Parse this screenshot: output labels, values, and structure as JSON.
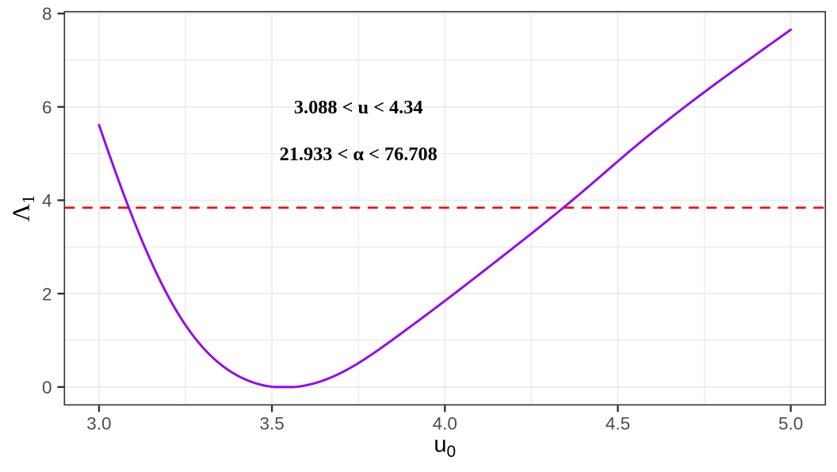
{
  "chart_data": {
    "type": "line",
    "title": "",
    "xlabel": {
      "base": "u",
      "subscript": "0"
    },
    "ylabel": {
      "base": "Λ",
      "subscript": "1"
    },
    "xlim": [
      2.9,
      5.1
    ],
    "ylim": [
      -0.38285,
      8.03985
    ],
    "x_ticks": {
      "values": [
        3.0,
        3.5,
        4.0,
        4.5,
        5.0
      ],
      "labels": [
        "3.0",
        "3.5",
        "4.0",
        "4.5",
        "5.0"
      ]
    },
    "y_ticks": {
      "values": [
        0,
        2,
        4,
        6,
        8
      ],
      "labels": [
        "0",
        "2",
        "4",
        "6",
        "8"
      ]
    },
    "x_minor_breaks": [
      3.25,
      3.75,
      4.25,
      4.75
    ],
    "y_minor_breaks": [
      1,
      3,
      5,
      7
    ],
    "grid": "major+minor",
    "legend": "none",
    "series": [
      {
        "name": "profile-likelihood-curve",
        "color": "#9405EC",
        "width": 2.9,
        "x": [
          3.0,
          3.01,
          3.02,
          3.03,
          3.04,
          3.05,
          3.06,
          3.07,
          3.08,
          3.09,
          3.1,
          3.11,
          3.12,
          3.13,
          3.14,
          3.15,
          3.16,
          3.17,
          3.18,
          3.19,
          3.2,
          3.21,
          3.22,
          3.23,
          3.24,
          3.25,
          3.26,
          3.27,
          3.28,
          3.29,
          3.3,
          3.31,
          3.32,
          3.33,
          3.34,
          3.35,
          3.36,
          3.37,
          3.38,
          3.39,
          3.4,
          3.41,
          3.42,
          3.43,
          3.44,
          3.45,
          3.46,
          3.47,
          3.48,
          3.49,
          3.5,
          3.51,
          3.52,
          3.53,
          3.54,
          3.55,
          3.56,
          3.57,
          3.58,
          3.59,
          3.6,
          3.61,
          3.62,
          3.63,
          3.64,
          3.65,
          3.66,
          3.67,
          3.68,
          3.69,
          3.7,
          3.71,
          3.72,
          3.73,
          3.74,
          3.75,
          3.76,
          3.77,
          3.78,
          3.79,
          3.8,
          3.81,
          3.82,
          3.83,
          3.84,
          3.85,
          3.86,
          3.87,
          3.88,
          3.89,
          3.9,
          3.91,
          3.92,
          3.93,
          3.94,
          3.95,
          3.96,
          3.97,
          3.98,
          3.99,
          4.0,
          4.01,
          4.02,
          4.03,
          4.04,
          4.05,
          4.06,
          4.07,
          4.08,
          4.09,
          4.1,
          4.11,
          4.12,
          4.13,
          4.14,
          4.15,
          4.16,
          4.17,
          4.18,
          4.19,
          4.2,
          4.21,
          4.22,
          4.23,
          4.24,
          4.25,
          4.26,
          4.27,
          4.28,
          4.29,
          4.3,
          4.31,
          4.32,
          4.33,
          4.34,
          4.35,
          4.36,
          4.37,
          4.38,
          4.39,
          4.4,
          4.41,
          4.42,
          4.43,
          4.44,
          4.45,
          4.46,
          4.47,
          4.48,
          4.49,
          4.5,
          4.51,
          4.52,
          4.53,
          4.54,
          4.55,
          4.56,
          4.57,
          4.58,
          4.59,
          4.6,
          4.61,
          4.62,
          4.63,
          4.64,
          4.65,
          4.66,
          4.67,
          4.68,
          4.69,
          4.7,
          4.71,
          4.72,
          4.73,
          4.74,
          4.75,
          4.76,
          4.77,
          4.78,
          4.79,
          4.8,
          4.81,
          4.82,
          4.83,
          4.84,
          4.85,
          4.86,
          4.87,
          4.88,
          4.89,
          4.9,
          4.91,
          4.92,
          4.93,
          4.94,
          4.95,
          4.96,
          4.97,
          4.98,
          4.99,
          5.0
        ],
        "y": [
          5.6127,
          5.3975,
          5.184,
          4.9727,
          4.7639,
          4.5577,
          4.3545,
          4.1546,
          3.958,
          3.7652,
          3.5763,
          3.3915,
          3.2109,
          3.0349,
          2.8636,
          2.6971,
          2.5356,
          2.3793,
          2.2284,
          2.0828,
          1.9428,
          1.8084,
          1.6796,
          1.5565,
          1.4389,
          1.327,
          1.2205,
          1.1195,
          1.0238,
          0.9334,
          0.8481,
          0.7678,
          0.6924,
          0.6216,
          0.5555,
          0.4937,
          0.4362,
          0.3828,
          0.3333,
          0.2877,
          0.2457,
          0.2072,
          0.1722,
          0.1405,
          0.1121,
          0.0867,
          0.0644,
          0.0452,
          0.0288,
          0.0152,
          0.0045,
          0.0,
          0.0,
          0.0,
          0.0,
          0.0,
          0.0,
          0.0027,
          0.0124,
          0.0244,
          0.0388,
          0.0555,
          0.0745,
          0.0957,
          0.1191,
          0.1447,
          0.1725,
          0.2025,
          0.2345,
          0.2685,
          0.3046,
          0.3425,
          0.3823,
          0.4239,
          0.4671,
          0.5119,
          0.5582,
          0.6058,
          0.6545,
          0.7044,
          0.7551,
          0.8067,
          0.859,
          0.9119,
          0.9652,
          1.019,
          1.073,
          1.1273,
          1.1819,
          1.2365,
          1.2913,
          1.3462,
          1.4012,
          1.4563,
          1.5115,
          1.5668,
          1.6223,
          1.6779,
          1.7336,
          1.7896,
          1.8457,
          1.902,
          1.9584,
          2.0151,
          2.0719,
          2.1289,
          2.186,
          2.2432,
          2.3006,
          2.358,
          2.4156,
          2.4731,
          2.5308,
          2.5885,
          2.6462,
          2.704,
          2.7618,
          2.8197,
          2.8776,
          2.9357,
          2.9938,
          3.0521,
          3.1105,
          3.169,
          3.2277,
          3.2865,
          3.3455,
          3.4048,
          3.4642,
          3.5238,
          3.5836,
          3.6437,
          3.704,
          3.7646,
          3.8255,
          3.8866,
          3.9481,
          4.0098,
          4.0718,
          4.1342,
          4.1969,
          4.2599,
          4.3232,
          4.3867,
          4.4505,
          4.5145,
          4.5786,
          4.6428,
          4.707,
          4.771,
          4.8349,
          4.8986,
          4.9619,
          5.0249,
          5.0875,
          5.1496,
          5.2113,
          5.2725,
          5.3333,
          5.3937,
          5.4536,
          5.5132,
          5.5724,
          5.6313,
          5.6899,
          5.7482,
          5.8062,
          5.8639,
          5.9214,
          5.9786,
          6.0355,
          6.0922,
          6.1485,
          6.2046,
          6.2604,
          6.3159,
          6.3711,
          6.426,
          6.4808,
          6.5353,
          6.5896,
          6.6437,
          6.6977,
          6.7515,
          6.8053,
          6.8589,
          6.9123,
          6.9657,
          7.0189,
          7.072,
          7.125,
          7.178,
          7.2308,
          7.2836,
          7.3363,
          7.389,
          7.4418,
          7.4946,
          7.5474,
          7.6005,
          7.6537
        ]
      }
    ],
    "hline": {
      "value": 3.841,
      "color": "#FF0000",
      "style": "dashed",
      "width": 2.6,
      "dash": [
        12.9,
        9.6
      ]
    },
    "annotations": [
      {
        "x": 3.75,
        "y": 6.0,
        "text": "3.088 < u < 4.34"
      },
      {
        "x": 3.75,
        "y": 5.0,
        "text": "21.933 < α < 76.708"
      }
    ],
    "theme": {
      "panel_background": "#FFFFFF",
      "outer_background": "#FFFFFF",
      "grid_color": "#EBEBEB",
      "border_color": "#333333",
      "tick_color": "#333333",
      "tick_label_color": "#4D4D4D",
      "axis_title_color": "#000000",
      "annotation_color": "#000000"
    }
  }
}
